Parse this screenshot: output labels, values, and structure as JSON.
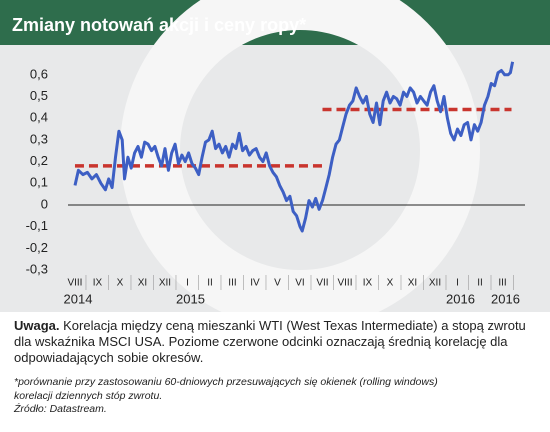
{
  "chart_data": {
    "type": "line",
    "title": "Zmiany notowań akcji i ceny ropy*",
    "xlim": [
      -0.31,
      20
    ],
    "ylim": [
      -0.3,
      0.65
    ],
    "yticks": [
      {
        "value": 0.6,
        "label": "0,6"
      },
      {
        "value": 0.5,
        "label": "0,5"
      },
      {
        "value": 0.4,
        "label": "0,4"
      },
      {
        "value": 0.3,
        "label": "0,3"
      },
      {
        "value": 0.2,
        "label": "0,2"
      },
      {
        "value": 0.1,
        "label": "0,1"
      },
      0,
      {
        "value": -0.1,
        "label": "-0,1"
      },
      {
        "value": -0.2,
        "label": "-0,2"
      },
      {
        "value": -0.3,
        "label": "-0,3"
      }
    ],
    "xticks": [
      {
        "value": 0,
        "label": "VIII"
      },
      {
        "value": 1,
        "label": "IX"
      },
      {
        "value": 2,
        "label": "X"
      },
      {
        "value": 3,
        "label": "XI"
      },
      {
        "value": 4,
        "label": "XII"
      },
      {
        "value": 5,
        "label": "I"
      },
      {
        "value": 6,
        "label": "II"
      },
      {
        "value": 7,
        "label": "III"
      },
      {
        "value": 8,
        "label": "IV"
      },
      {
        "value": 9,
        "label": "V"
      },
      {
        "value": 10,
        "label": "VI"
      },
      {
        "value": 11,
        "label": "VII"
      },
      {
        "value": 12,
        "label": "VIII"
      },
      {
        "value": 13,
        "label": "IX"
      },
      {
        "value": 14,
        "label": "X"
      },
      {
        "value": 15,
        "label": "XI"
      },
      {
        "value": 16,
        "label": "XII"
      },
      {
        "value": 17,
        "label": "I"
      },
      {
        "value": 18,
        "label": "II"
      },
      {
        "value": 19,
        "label": "III"
      }
    ],
    "year_labels": [
      {
        "value": 0,
        "label": "2014"
      },
      {
        "value": 5,
        "label": "2015"
      },
      {
        "value": 17,
        "label": "2016"
      },
      {
        "value": 19,
        "label": "2016"
      }
    ],
    "series": [
      {
        "color": "#3d5fc4",
        "x": [
          0,
          0.15,
          0.35,
          0.55,
          0.75,
          0.95,
          1.15,
          1.35,
          1.5,
          1.65,
          1.8,
          1.95,
          2.1,
          2.2,
          2.35,
          2.5,
          2.65,
          2.8,
          2.95,
          3.1,
          3.25,
          3.4,
          3.55,
          3.7,
          3.85,
          4.0,
          4.15,
          4.3,
          4.45,
          4.6,
          4.75,
          4.9,
          5.05,
          5.2,
          5.35,
          5.5,
          5.65,
          5.8,
          5.95,
          6.1,
          6.25,
          6.4,
          6.55,
          6.7,
          6.85,
          7.0,
          7.15,
          7.3,
          7.45,
          7.6,
          7.75,
          7.9,
          8.05,
          8.2,
          8.35,
          8.5,
          8.65,
          8.8,
          8.95,
          9.1,
          9.25,
          9.4,
          9.55,
          9.7,
          9.85,
          10.0,
          10.1,
          10.25,
          10.4,
          10.55,
          10.7,
          10.85,
          11.0,
          11.15,
          11.3,
          11.45,
          11.6,
          11.75,
          11.9,
          12.05,
          12.2,
          12.35,
          12.5,
          12.65,
          12.8,
          12.95,
          13.1,
          13.25,
          13.4,
          13.55,
          13.7,
          13.85,
          14.0,
          14.15,
          14.3,
          14.45,
          14.6,
          14.75,
          14.9,
          15.05,
          15.2,
          15.35,
          15.5,
          15.65,
          15.8,
          15.95,
          16.1,
          16.25,
          16.4,
          16.55,
          16.7,
          16.85,
          17.0,
          17.15,
          17.3,
          17.45,
          17.6,
          17.75,
          17.9,
          18.05,
          18.2,
          18.35,
          18.5,
          18.65,
          18.8,
          18.95,
          19.1,
          19.25,
          19.35,
          19.45
        ],
        "values": [
          0.09,
          0.16,
          0.14,
          0.15,
          0.12,
          0.14,
          0.1,
          0.07,
          0.12,
          0.08,
          0.22,
          0.34,
          0.3,
          0.12,
          0.22,
          0.17,
          0.24,
          0.27,
          0.22,
          0.29,
          0.28,
          0.25,
          0.27,
          0.22,
          0.18,
          0.26,
          0.16,
          0.24,
          0.28,
          0.19,
          0.23,
          0.2,
          0.24,
          0.19,
          0.17,
          0.14,
          0.22,
          0.29,
          0.3,
          0.34,
          0.26,
          0.28,
          0.24,
          0.27,
          0.22,
          0.28,
          0.26,
          0.33,
          0.25,
          0.27,
          0.23,
          0.25,
          0.26,
          0.22,
          0.2,
          0.24,
          0.18,
          0.15,
          0.13,
          0.09,
          0.06,
          0.02,
          0.04,
          -0.03,
          -0.05,
          -0.1,
          -0.12,
          -0.06,
          0.02,
          -0.01,
          0.03,
          -0.02,
          0.02,
          0.08,
          0.14,
          0.22,
          0.28,
          0.3,
          0.36,
          0.42,
          0.46,
          0.48,
          0.54,
          0.5,
          0.47,
          0.5,
          0.42,
          0.38,
          0.47,
          0.37,
          0.48,
          0.52,
          0.47,
          0.5,
          0.49,
          0.46,
          0.52,
          0.5,
          0.54,
          0.52,
          0.47,
          0.5,
          0.48,
          0.46,
          0.52,
          0.55,
          0.48,
          0.43,
          0.5,
          0.4,
          0.33,
          0.3,
          0.35,
          0.32,
          0.37,
          0.38,
          0.3,
          0.37,
          0.34,
          0.38,
          0.46,
          0.5,
          0.56,
          0.55,
          0.61,
          0.62,
          0.6,
          0.6,
          0.61,
          0.66
        ]
      }
    ],
    "mean_color": "#c9352e",
    "mean_lines": [
      {
        "x": [
          0,
          11
        ],
        "y": 0.18
      },
      {
        "x": [
          11,
          19.4
        ],
        "y": 0.44
      }
    ],
    "note": {
      "label": "Uwaga.",
      "text": "Korelacja między ceną mieszanki WTI (West Texas Intermediate) a stopą zwrotu dla wskaźnika MSCI USA. Poziome czerwone odcinki oznaczają średnią korelację dla odpowiadających sobie okresów."
    },
    "footnotes": [
      "*porównanie przy zastosowaniu 60-dniowych przesuwających się okienek (rolling windows)",
      "korelacji dziennych stóp zwrotu.",
      "Źródło: Datastream."
    ]
  }
}
